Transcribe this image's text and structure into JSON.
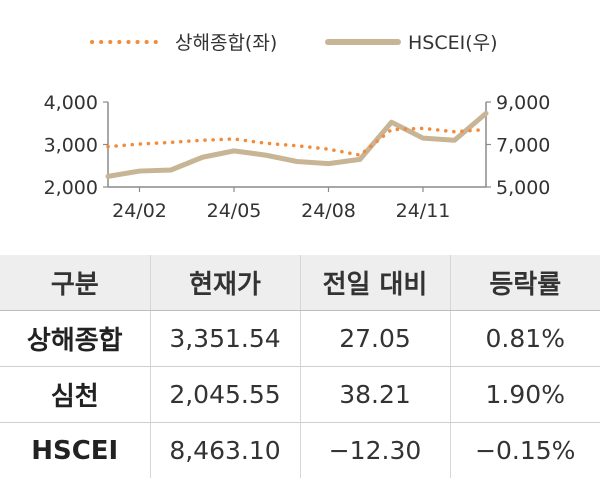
{
  "chart_data": {
    "type": "line",
    "legend_placement": "top-center",
    "x_ticks": [
      "24/02",
      "24/05",
      "24/08",
      "24/11"
    ],
    "y_left": {
      "ylim": [
        2000,
        4000
      ],
      "ticks": [
        "2,000",
        "3,000",
        "4,000"
      ]
    },
    "y_right": {
      "ylim": [
        5000,
        9000
      ],
      "ticks": [
        "5,000",
        "7,000",
        "9,000"
      ]
    },
    "series": [
      {
        "name": "상해종합(좌)",
        "axis": "left",
        "style": "dotted",
        "color": "#f28c3c",
        "x": [
          "24/01",
          "24/02",
          "24/03",
          "24/04",
          "24/05",
          "24/06",
          "24/07",
          "24/08",
          "24/09",
          "24/10",
          "24/11",
          "24/12",
          "25/01"
        ],
        "values": [
          2950,
          3010,
          3050,
          3100,
          3130,
          3030,
          2970,
          2890,
          2750,
          3350,
          3380,
          3300,
          3351.54
        ]
      },
      {
        "name": "HSCEI(우)",
        "axis": "right",
        "style": "solid",
        "color": "#c7b595",
        "x": [
          "24/01",
          "24/02",
          "24/03",
          "24/04",
          "24/05",
          "24/06",
          "24/07",
          "24/08",
          "24/09",
          "24/10",
          "24/11",
          "24/12",
          "25/01"
        ],
        "values": [
          5500,
          5750,
          5800,
          6400,
          6700,
          6500,
          6200,
          6100,
          6300,
          8050,
          7300,
          7200,
          8463.1
        ]
      }
    ]
  },
  "table": {
    "headers": [
      "구분",
      "현재가",
      "전일 대비",
      "등락률"
    ],
    "rows": [
      [
        "상해종합",
        "3,351.54",
        "27.05",
        "0.81%"
      ],
      [
        "심천",
        "2,045.55",
        "38.21",
        "1.90%"
      ],
      [
        "HSCEI",
        "8,463.10",
        "−12.30",
        "−0.15%"
      ]
    ]
  }
}
